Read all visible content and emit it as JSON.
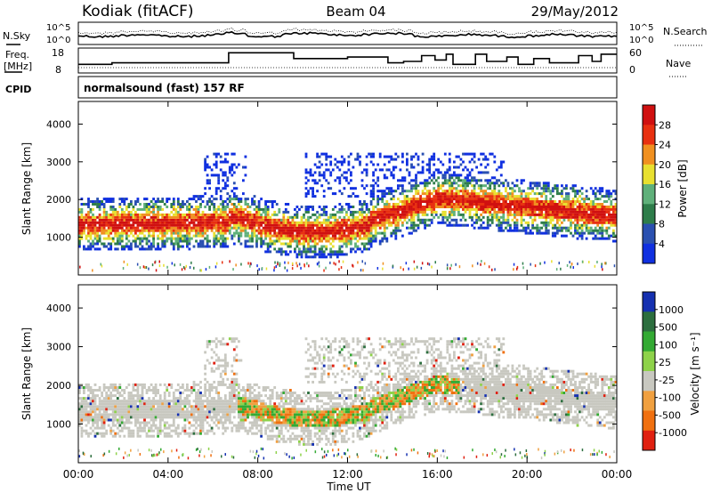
{
  "header": {
    "site": "Kodiak (fitACF)",
    "beam": "Beam 04",
    "date": "29/May/2012"
  },
  "noise_panel": {
    "left_label": "N.Sky",
    "right_label": "N.Search",
    "tick_top": "10^5",
    "tick_bottom": "10^0"
  },
  "freq_panel": {
    "left_label_1": "Freq.",
    "left_label_2": "[MHz]",
    "left_ticks": [
      "18",
      "8"
    ],
    "right_label": "Nave",
    "right_ticks": [
      "60",
      "0"
    ]
  },
  "cpid": {
    "label": "CPID",
    "mode": "normalsound (fast) 157 RF"
  },
  "chart_data": [
    {
      "type": "heatmap",
      "name": "power",
      "ylabel": "Slant Range [km]",
      "ylim": [
        0,
        4600
      ],
      "yticks": [
        "1000",
        "2000",
        "3000",
        "4000"
      ],
      "x_range_hours": [
        0,
        24
      ],
      "colorbar_label": "Power [dB]",
      "colorbar_ticks": [
        "28",
        "24",
        "20",
        "16",
        "12",
        "8",
        "4"
      ],
      "colors": [
        "#1030e0",
        "#2a50b0",
        "#2e7d4a",
        "#5fb07a",
        "#e8e030",
        "#f09020",
        "#e83010",
        "#d01010"
      ]
    },
    {
      "type": "heatmap",
      "name": "velocity",
      "ylabel": "Slant Range [km]",
      "ylim": [
        0,
        4600
      ],
      "yticks": [
        "1000",
        "2000",
        "3000",
        "4000"
      ],
      "x_range_hours": [
        0,
        24
      ],
      "colorbar_label": "Velocity [m s⁻¹]",
      "colorbar_ticks": [
        "1000",
        "500",
        "100",
        "25",
        "-25",
        "-100",
        "-500",
        "-1000"
      ],
      "colors": [
        "#1530b0",
        "#2c6e3e",
        "#33aa33",
        "#8ed24a",
        "#c8c8c0",
        "#f0a040",
        "#f07010",
        "#e02010"
      ]
    }
  ],
  "x_axis": {
    "ticks": [
      "00:00",
      "04:00",
      "08:00",
      "12:00",
      "16:00",
      "20:00",
      "00:00"
    ],
    "label": "Time UT"
  }
}
